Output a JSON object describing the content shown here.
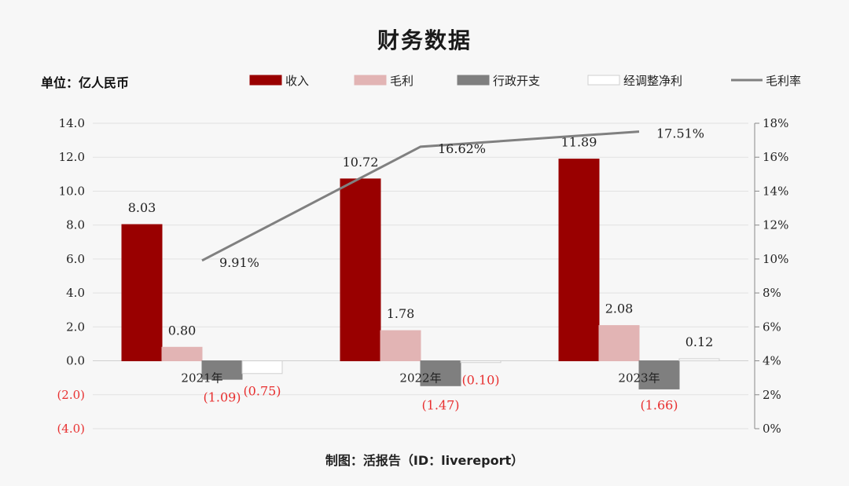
{
  "chart_data": {
    "type": "bar",
    "title": "财务数据",
    "unit": "单位：亿人民币",
    "source": "制图：活报告（ID：livereport）",
    "categories": [
      "2021年",
      "2022年",
      "2023年"
    ],
    "series": [
      {
        "name": "收入",
        "color": "#990000",
        "border": "#990000",
        "values": [
          8.03,
          10.72,
          11.89
        ],
        "labels": [
          "8.03",
          "10.72",
          "11.89"
        ]
      },
      {
        "name": "毛利",
        "color": "#e2b4b4",
        "border": "#e2b4b4",
        "values": [
          0.8,
          1.78,
          2.08
        ],
        "labels": [
          "0.80",
          "1.78",
          "2.08"
        ]
      },
      {
        "name": "行政开支",
        "color": "#7f7f7f",
        "border": "#7f7f7f",
        "values": [
          -1.09,
          -1.47,
          -1.66
        ],
        "labels": [
          "(1.09)",
          "(1.47)",
          "(1.66)"
        ]
      },
      {
        "name": "经调整净利",
        "color": "#ffffff",
        "border": "#cfcfcf",
        "values": [
          -0.75,
          -0.1,
          0.12
        ],
        "labels": [
          "(0.75)",
          "(0.10)",
          "0.12"
        ]
      }
    ],
    "line_series": {
      "name": "毛利率",
      "color": "#808080",
      "values": [
        9.91,
        16.62,
        17.51
      ],
      "labels": [
        "9.91%",
        "16.62%",
        "17.51%"
      ]
    },
    "left_axis": {
      "min": -4,
      "max": 14,
      "step": 2,
      "tick_labels": [
        "(4.0)",
        "(2.0)",
        "0.0",
        "2.0",
        "4.0",
        "6.0",
        "8.0",
        "10.0",
        "12.0",
        "14.0"
      ]
    },
    "right_axis": {
      "min": 0,
      "max": 18,
      "step": 2,
      "tick_labels": [
        "0%",
        "2%",
        "4%",
        "6%",
        "8%",
        "10%",
        "12%",
        "14%",
        "16%",
        "18%"
      ]
    },
    "negative_label_color": "#e83030",
    "legend_position": "top"
  }
}
